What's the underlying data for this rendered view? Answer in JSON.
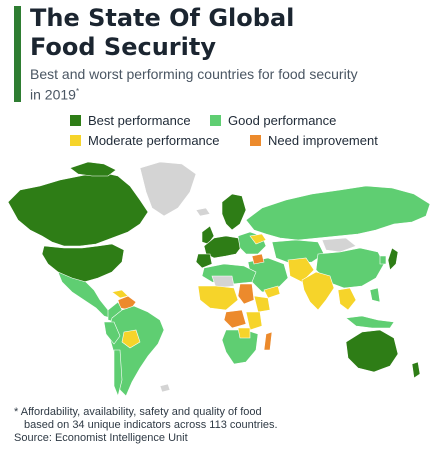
{
  "header": {
    "title_line1": "The State Of Global",
    "title_line2": "Food Security",
    "subtitle_line1": "Best and worst performing countries for food security",
    "subtitle_line2": "in 2019",
    "subtitle_marker": "*"
  },
  "legend": [
    {
      "label": "Best performance",
      "color": "#2e7d16"
    },
    {
      "label": "Good performance",
      "color": "#5fce72"
    },
    {
      "label": "Moderate performance",
      "color": "#f6d42a"
    },
    {
      "label": "Need improvement",
      "color": "#ec8a2c"
    }
  ],
  "map_colors": {
    "no_data": "#d4d4d4",
    "best": "#2e7d16",
    "good": "#5fce72",
    "moderate": "#f6d42a",
    "improve": "#ec8a2c"
  },
  "footnote": {
    "line1": "* Affordability, availability, safety and quality of food",
    "line2": "based on 34 unique indicators across 113 countries.",
    "source": "Source: Economist Intelligence Unit"
  }
}
